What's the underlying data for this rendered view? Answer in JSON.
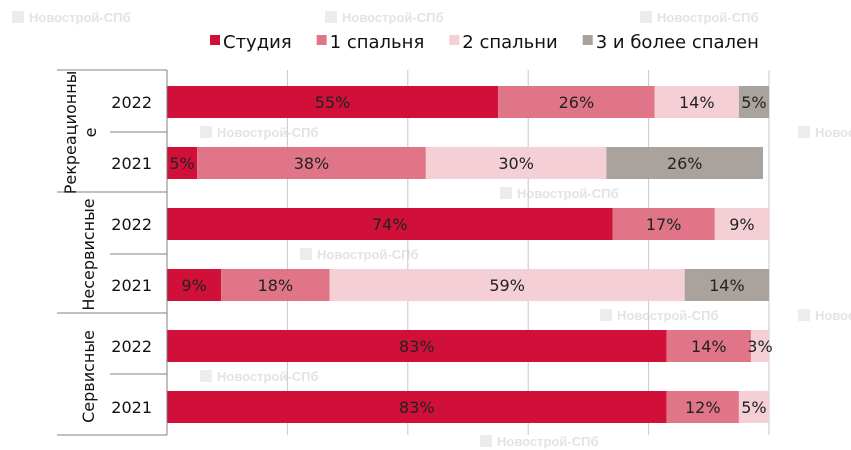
{
  "watermark": "Новострой-СПб",
  "chart_data": {
    "type": "bar",
    "orientation": "horizontal",
    "stacked": true,
    "xlim": [
      0,
      100
    ],
    "grid": true,
    "legend_position": "top",
    "groups": [
      {
        "label_lines": [
          "Рекреационны",
          "е"
        ],
        "rows": [
          0,
          1
        ]
      },
      {
        "label_lines": [
          "Несервисные"
        ],
        "rows": [
          2,
          3
        ]
      },
      {
        "label_lines": [
          "Сервисные"
        ],
        "rows": [
          4,
          5
        ]
      }
    ],
    "categories": [
      "2022",
      "2021",
      "2022",
      "2021",
      "2022",
      "2021"
    ],
    "series": [
      {
        "name": "Студия",
        "color": "#d01038",
        "values": [
          55,
          5,
          74,
          9,
          83,
          83
        ]
      },
      {
        "name": "1 спальня",
        "color": "#e07587",
        "values": [
          26,
          38,
          17,
          18,
          14,
          12
        ]
      },
      {
        "name": "2 спальни",
        "color": "#f5cfd6",
        "values": [
          14,
          30,
          9,
          59,
          3,
          5
        ]
      },
      {
        "name": "3 и более спален",
        "color": "#aaa39d",
        "values": [
          5,
          26,
          0,
          14,
          0,
          0
        ]
      }
    ],
    "label_suffix": "%"
  }
}
